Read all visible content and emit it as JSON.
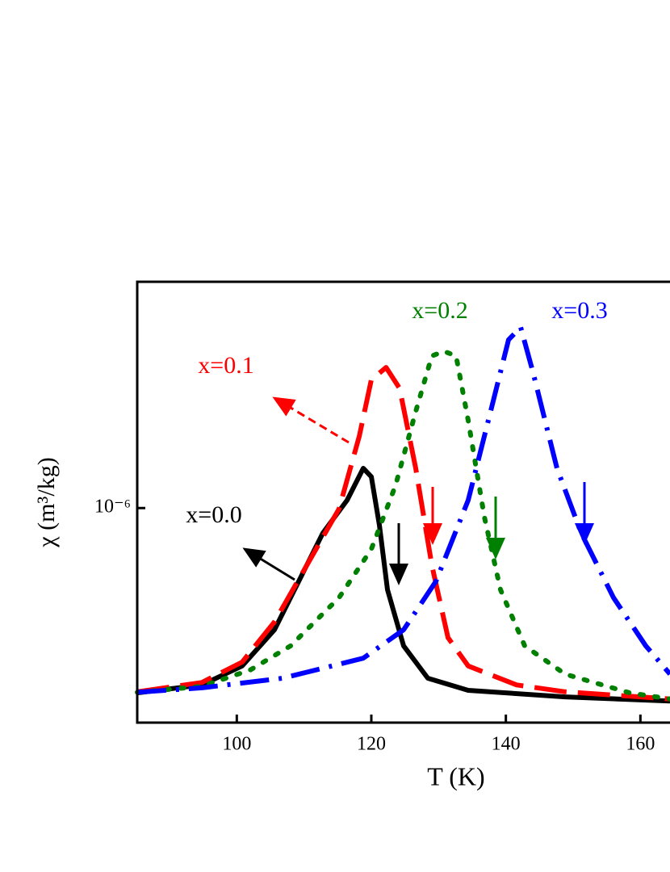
{
  "chart_data": {
    "type": "line",
    "x_label": "T (K)",
    "y_label": "χ (m³/kg)",
    "xlim": [
      85.2,
      164.4
    ],
    "xticks": [
      100,
      120,
      140,
      160
    ],
    "ylim": [
      3.42e-07,
      3.1e-06
    ],
    "yticks": [
      {
        "value": 1e-06,
        "label": "10⁻⁶"
      }
    ],
    "log_y": true,
    "series": [
      {
        "name": "x=0.0",
        "color": "#000000",
        "x": [
          85.2,
          94.8,
          100.8,
          105.6,
          109.2,
          112.8,
          116.4,
          118.8,
          120.0,
          121.2,
          122.4,
          124.8,
          128.4,
          134.4,
          148.8,
          164.4
        ],
        "values": [
          3.97e-07,
          4.13e-07,
          4.54e-07,
          5.44e-07,
          6.93e-07,
          8.83e-07,
          1.04e-06,
          1.22e-06,
          1.17e-06,
          9.18e-07,
          6.65e-07,
          5.02e-07,
          4.27e-07,
          4.02e-07,
          3.89e-07,
          3.81e-07
        ]
      },
      {
        "name": "x=0.1",
        "color": "#ff0000",
        "x": [
          85.2,
          94.8,
          100.8,
          105.6,
          110.4,
          115.2,
          118.2,
          120.0,
          122.2,
          124.2,
          126.6,
          129.0,
          131.4,
          134.4,
          141.6,
          148.8,
          164.4
        ],
        "values": [
          3.99e-07,
          4.18e-07,
          4.63e-07,
          5.66e-07,
          7.51e-07,
          9.96e-07,
          1.43e-06,
          1.9e-06,
          2.02e-06,
          1.82e-06,
          1.22e-06,
          7.51e-07,
          5.23e-07,
          4.54e-07,
          4.13e-07,
          3.99e-07,
          3.85e-07
        ]
      },
      {
        "name": "x=0.2",
        "color": "#008000",
        "x": [
          85.2,
          94.8,
          102.0,
          108.0,
          115.2,
          120.0,
          123.6,
          126.6,
          129.0,
          130.8,
          132.6,
          134.4,
          136.8,
          139.2,
          142.8,
          148.8,
          158.4,
          164.4
        ],
        "values": [
          3.98e-07,
          4.1e-07,
          4.45e-07,
          5.02e-07,
          6.39e-07,
          8.14e-07,
          1.12e-06,
          1.62e-06,
          2.14e-06,
          2.19e-06,
          2.14e-06,
          1.55e-06,
          9.57e-07,
          6.65e-07,
          5.02e-07,
          4.36e-07,
          3.97e-07,
          3.85e-07
        ]
      },
      {
        "name": "x=0.3",
        "color": "#0000ff",
        "x": [
          85.2,
          94.8,
          106.8,
          118.8,
          124.8,
          129.6,
          134.4,
          138.0,
          140.4,
          142.2,
          144.0,
          147.6,
          151.2,
          156.0,
          160.8,
          164.4
        ],
        "values": [
          3.98e-07,
          4.07e-07,
          4.27e-07,
          4.72e-07,
          5.44e-07,
          6.93e-07,
          1.04e-06,
          1.68e-06,
          2.32e-06,
          2.47e-06,
          1.98e-06,
          1.22e-06,
          8.83e-07,
          6.39e-07,
          5.02e-07,
          4.36e-07
        ]
      }
    ]
  }
}
